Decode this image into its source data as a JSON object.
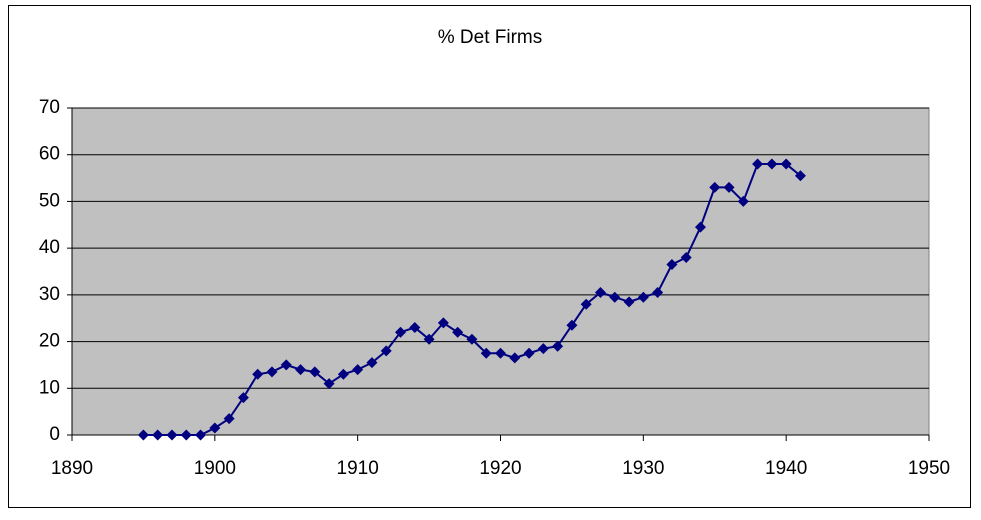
{
  "chart_data": {
    "type": "line",
    "title": "% Det Firms",
    "x": [
      1895,
      1896,
      1897,
      1898,
      1899,
      1900,
      1901,
      1902,
      1903,
      1904,
      1905,
      1906,
      1907,
      1908,
      1909,
      1910,
      1911,
      1912,
      1913,
      1914,
      1915,
      1916,
      1917,
      1918,
      1919,
      1920,
      1921,
      1922,
      1923,
      1924,
      1925,
      1926,
      1927,
      1928,
      1929,
      1930,
      1931,
      1932,
      1933,
      1934,
      1935,
      1936,
      1937,
      1938,
      1939,
      1940,
      1941
    ],
    "series": [
      {
        "color": "#000080",
        "values": [
          0,
          0,
          0,
          0,
          0,
          1.5,
          3.5,
          8,
          13,
          13.5,
          15,
          14,
          13.5,
          11,
          13,
          14,
          15.5,
          18,
          22,
          23,
          20.5,
          24,
          22,
          20.5,
          17.5,
          17.5,
          16.5,
          17.5,
          18.5,
          19,
          23.5,
          28,
          30.5,
          29.5,
          28.5,
          29.5,
          30.5,
          36.5,
          38,
          44.5,
          53,
          53,
          50,
          58,
          58,
          58,
          55.5
        ]
      }
    ],
    "xlim": [
      1890,
      1950
    ],
    "xticks": [
      1890,
      1900,
      1910,
      1920,
      1930,
      1940,
      1950
    ],
    "ylim": [
      0,
      70
    ],
    "yticks": [
      0,
      10,
      20,
      30,
      40,
      50,
      60,
      70
    ],
    "grid": true,
    "plot_background": "#c0c0c0"
  }
}
